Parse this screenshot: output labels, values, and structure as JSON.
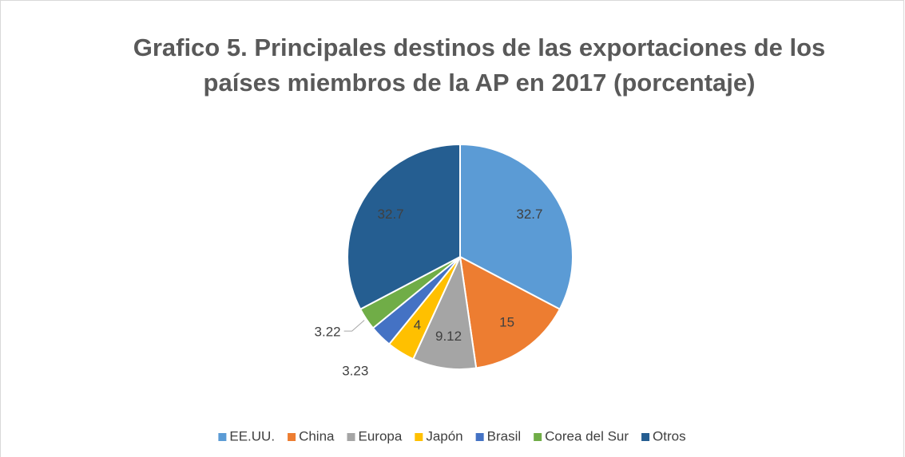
{
  "chart_data": {
    "type": "pie",
    "title": "Grafico 5. Principales destinos de las exportaciones de los países miembros de la AP en 2017 (porcentaje)",
    "categories": [
      "EE.UU.",
      "China",
      "Europa",
      "Japón",
      "Brasil",
      "Corea del Sur",
      "Otros"
    ],
    "values": [
      32.7,
      15,
      9.12,
      4,
      3.23,
      3.22,
      32.7
    ],
    "colors": [
      "#5b9bd5",
      "#ed7d31",
      "#a5a5a5",
      "#ffc000",
      "#4472c4",
      "#70ad47",
      "#255e91"
    ],
    "legend": "bottom"
  }
}
